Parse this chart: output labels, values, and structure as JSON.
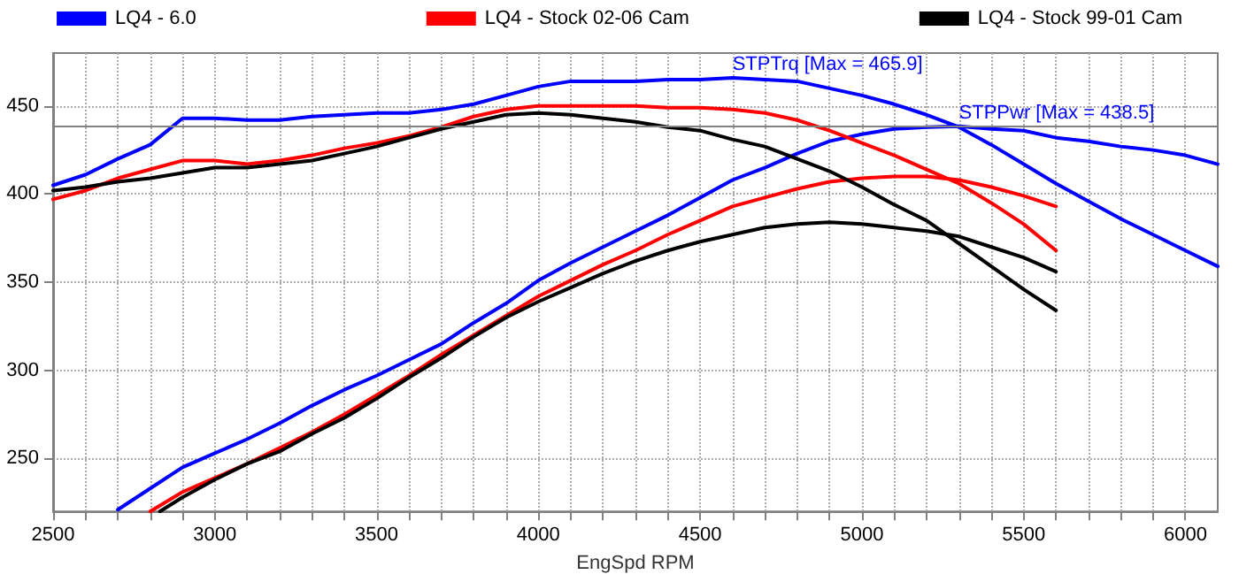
{
  "chart_data": {
    "type": "line",
    "xlabel": "EngSpd RPM",
    "xlim": [
      2500,
      6100
    ],
    "ylim": [
      220,
      480
    ],
    "xticks": [
      2500,
      {
        "value": 2600,
        "label": null
      },
      {
        "value": 2700,
        "label": null
      },
      {
        "value": 2800,
        "label": null
      },
      {
        "value": 2900,
        "label": null
      },
      3000,
      {
        "value": 3100,
        "label": null
      },
      {
        "value": 3200,
        "label": null
      },
      {
        "value": 3300,
        "label": null
      },
      {
        "value": 3400,
        "label": null
      },
      3500,
      {
        "value": 3600,
        "label": null
      },
      {
        "value": 3700,
        "label": null
      },
      {
        "value": 3800,
        "label": null
      },
      {
        "value": 3900,
        "label": null
      },
      4000,
      {
        "value": 4100,
        "label": null
      },
      {
        "value": 4200,
        "label": null
      },
      {
        "value": 4300,
        "label": null
      },
      {
        "value": 4400,
        "label": null
      },
      4500,
      {
        "value": 4600,
        "label": null
      },
      {
        "value": 4700,
        "label": null
      },
      {
        "value": 4800,
        "label": null
      },
      {
        "value": 4900,
        "label": null
      },
      5000,
      {
        "value": 5100,
        "label": null
      },
      {
        "value": 5200,
        "label": null
      },
      {
        "value": 5300,
        "label": null
      },
      {
        "value": 5400,
        "label": null
      },
      5500,
      {
        "value": 5600,
        "label": null
      },
      {
        "value": 5700,
        "label": null
      },
      {
        "value": 5800,
        "label": null
      },
      {
        "value": 5900,
        "label": null
      },
      6000
    ],
    "yticks": [
      250,
      300,
      350,
      400,
      450
    ],
    "grid": true,
    "legend": "top",
    "marker": "none",
    "line_style": "solid",
    "series": [
      {
        "name": "LQ4 - 6.0",
        "color": "#0000ff",
        "x": [
          2500,
          2600,
          2700,
          2800,
          2900,
          3000,
          3100,
          3200,
          3300,
          3400,
          3500,
          3600,
          3700,
          3800,
          3900,
          4000,
          4100,
          4200,
          4300,
          4400,
          4500,
          4600,
          4700,
          4800,
          4900,
          5000,
          5100,
          5200,
          5300,
          5400,
          5500,
          5600,
          5700,
          5800,
          5900,
          6000,
          6100
        ],
        "values": [
          405,
          411,
          420,
          428,
          443,
          443,
          442,
          442,
          444,
          445,
          446,
          446,
          448,
          451,
          456,
          461,
          464,
          464,
          464,
          465,
          465,
          465.9,
          465,
          464,
          460,
          456,
          451,
          445,
          438,
          428,
          417,
          406,
          396,
          386,
          377,
          368,
          359
        ]
      },
      {
        "color": "#0000ff",
        "x": [
          2700,
          2800,
          2900,
          3000,
          3100,
          3200,
          3300,
          3400,
          3500,
          3600,
          3700,
          3800,
          3900,
          4000,
          4100,
          4200,
          4300,
          4400,
          4500,
          4600,
          4700,
          4800,
          4900,
          5000,
          5100,
          5200,
          5300,
          5400,
          5500,
          5600,
          5700,
          5800,
          5900,
          6000,
          6100
        ],
        "values": [
          221,
          233,
          245,
          253,
          261,
          270,
          280,
          289,
          297,
          306,
          315,
          327,
          338,
          351,
          361,
          370,
          379,
          388,
          398,
          408,
          415,
          423,
          430,
          434,
          437,
          438,
          438.5,
          437,
          436,
          432,
          430,
          427,
          425,
          422,
          417
        ]
      },
      {
        "name": "LQ4 - Stock 02-06 Cam",
        "color": "#ff0000",
        "x": [
          2500,
          2600,
          2700,
          2800,
          2900,
          3000,
          3100,
          3200,
          3300,
          3400,
          3500,
          3600,
          3700,
          3800,
          3900,
          4000,
          4100,
          4200,
          4300,
          4400,
          4500,
          4600,
          4700,
          4800,
          4900,
          5000,
          5100,
          5200,
          5300,
          5400,
          5500,
          5600
        ],
        "values": [
          397,
          402,
          409,
          414,
          419,
          419,
          417,
          419,
          422,
          426,
          429,
          433,
          438,
          444,
          448,
          450,
          450,
          450,
          450,
          449,
          449,
          448,
          446,
          442,
          436,
          429,
          422,
          414,
          406,
          395,
          383,
          368
        ]
      },
      {
        "color": "#ff0000",
        "x": [
          2800,
          2900,
          3000,
          3100,
          3200,
          3300,
          3400,
          3500,
          3600,
          3700,
          3800,
          3900,
          4000,
          4100,
          4200,
          4300,
          4400,
          4500,
          4600,
          4700,
          4800,
          4900,
          5000,
          5100,
          5200,
          5300,
          5400,
          5500,
          5600
        ],
        "values": [
          220,
          231,
          239,
          247,
          256,
          265,
          275,
          286,
          297,
          309,
          320,
          331,
          342,
          351,
          360,
          368,
          377,
          385,
          393,
          398,
          403,
          407,
          409,
          410,
          410,
          408,
          404,
          399,
          393
        ]
      },
      {
        "name": "LQ4 - Stock 99-01 Cam",
        "color": "#000000",
        "x": [
          2500,
          2600,
          2700,
          2800,
          2900,
          3000,
          3100,
          3200,
          3300,
          3400,
          3500,
          3600,
          3700,
          3800,
          3900,
          4000,
          4100,
          4200,
          4300,
          4400,
          4500,
          4600,
          4700,
          4800,
          4900,
          5000,
          5100,
          5200,
          5300,
          5400,
          5500,
          5600
        ],
        "values": [
          402,
          404,
          407,
          409,
          412,
          415,
          415,
          417,
          419,
          423,
          427,
          432,
          437,
          441,
          445,
          446,
          445,
          443,
          441,
          438,
          436,
          431,
          427,
          420,
          413,
          404,
          394,
          385,
          372,
          359,
          346,
          334
        ]
      },
      {
        "color": "#000000",
        "x": [
          2830,
          2900,
          3000,
          3100,
          3200,
          3300,
          3400,
          3500,
          3600,
          3700,
          3800,
          3900,
          4000,
          4100,
          4200,
          4300,
          4400,
          4500,
          4600,
          4700,
          4800,
          4900,
          5000,
          5100,
          5200,
          5300,
          5400,
          5500,
          5600
        ],
        "values": [
          220,
          228,
          238,
          247,
          254,
          264,
          273,
          284,
          296,
          307,
          319,
          330,
          339,
          347,
          355,
          362,
          368,
          373,
          377,
          381,
          383,
          384,
          383,
          381,
          379,
          376,
          370,
          364,
          356
        ]
      }
    ],
    "ref_lines": [
      {
        "axis": "y",
        "value": 438.5,
        "color": "#808080"
      }
    ],
    "annotations": [
      {
        "text": "STPTrq [Max = 465.9]",
        "x": 4600,
        "y": 465.9
      },
      {
        "text": "STPPwr [Max = 438.5]",
        "x": 5300,
        "y": 438.5
      }
    ]
  }
}
